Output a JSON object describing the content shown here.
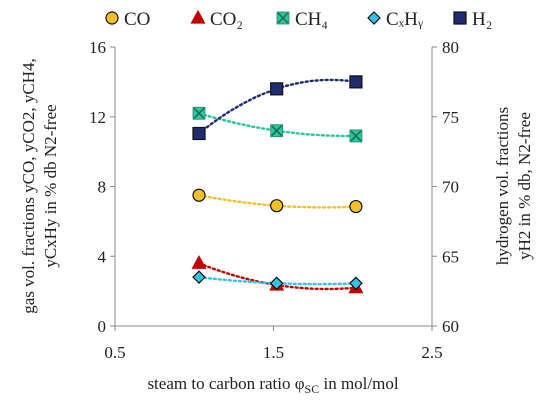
{
  "chart_data": {
    "type": "scatter",
    "title": "",
    "xlabel": "steam to carbon ratio φSC in mol/mol",
    "ylabel_left_lines": [
      "gas vol. fractions yCO, yCO2, yCH4,",
      "yCxHy in % db N2-free"
    ],
    "ylabel_right_lines": [
      "hydrogen vol. fractions",
      "yH2 in % db, N2-free"
    ],
    "xlim": [
      0.5,
      2.5
    ],
    "ylim_left": [
      0,
      16
    ],
    "ylim_right": [
      60,
      80
    ],
    "xticks": [
      "0.5",
      "1.5",
      "2.5"
    ],
    "yticks_left": [
      "0",
      "4",
      "8",
      "12",
      "16"
    ],
    "yticks_right": [
      "60",
      "65",
      "70",
      "75",
      "80"
    ],
    "grid": false,
    "legend_position": "top",
    "series": [
      {
        "name": "CO",
        "axis": "left",
        "marker": "circle",
        "color": "#f5c02a",
        "x": [
          1.03,
          1.52,
          2.02
        ],
        "y": [
          7.5,
          6.9,
          6.85
        ]
      },
      {
        "name": "CO₂",
        "axis": "left",
        "marker": "triangle",
        "color": "#c00000",
        "x": [
          1.03,
          1.52,
          2.02
        ],
        "y": [
          3.6,
          2.35,
          2.2
        ]
      },
      {
        "name": "CH₄",
        "axis": "left",
        "marker": "x",
        "color": "#2ec4a0",
        "x": [
          1.03,
          1.52,
          2.02
        ],
        "y": [
          12.2,
          11.2,
          10.9
        ]
      },
      {
        "name": "CₓHᵧ",
        "axis": "left",
        "marker": "diamond",
        "color": "#33c3ea",
        "x": [
          1.03,
          1.52,
          2.02
        ],
        "y": [
          2.8,
          2.45,
          2.45
        ]
      },
      {
        "name": "H₂",
        "axis": "right",
        "marker": "square",
        "color": "#1f2d6e",
        "x": [
          1.03,
          1.52,
          2.02
        ],
        "y": [
          73.8,
          77.0,
          77.5
        ]
      }
    ]
  }
}
